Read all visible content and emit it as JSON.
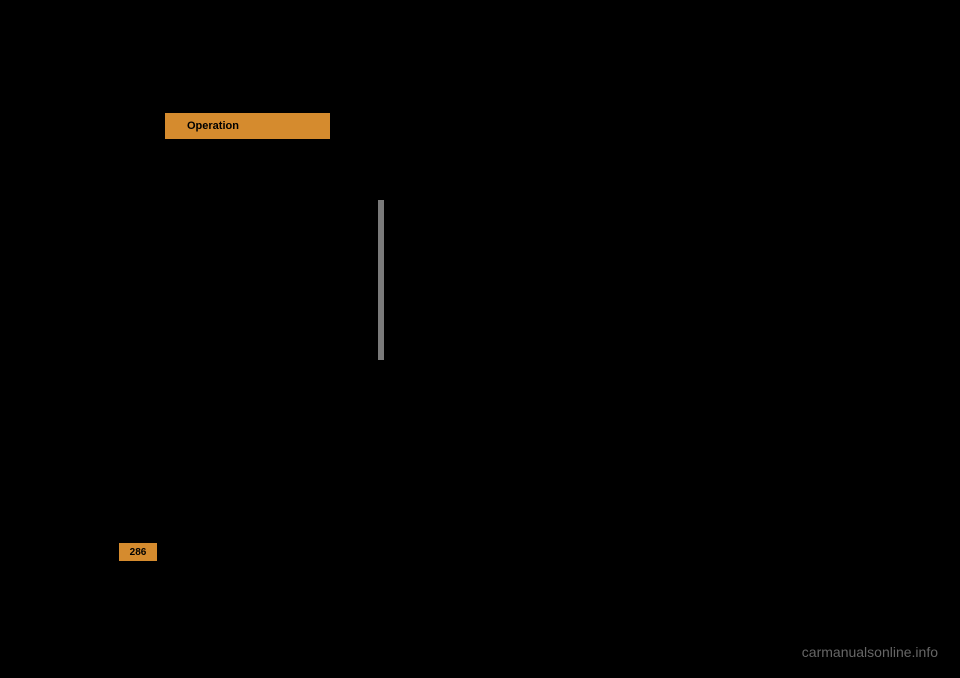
{
  "tab": {
    "label": "Operation",
    "background_color": "#d58b2e",
    "text_color": "#000000",
    "fontsize": 11
  },
  "vertical_bar": {
    "color": "#7a7a7a"
  },
  "page_number": {
    "value": "286",
    "background_color": "#d58b2e",
    "text_color": "#000000",
    "fontsize": 10
  },
  "watermark": {
    "text": "carmanualsonline.info",
    "color": "#666666",
    "fontsize": 14
  },
  "background_color": "#000000"
}
